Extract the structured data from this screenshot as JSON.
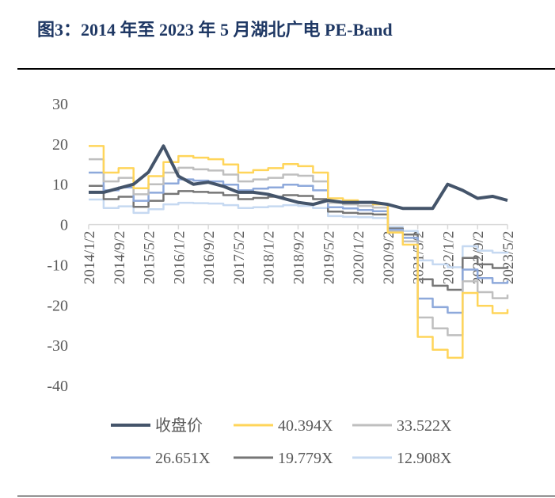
{
  "title": "图3：2014 年至 2023 年 5 月湖北广电 PE-Band",
  "chart_data": {
    "type": "line",
    "title": "图3：2014 年至 2023 年 5 月湖北广电 PE-Band",
    "ylim": [
      -40,
      30
    ],
    "yticks": [
      30,
      20,
      10,
      0,
      -10,
      -20,
      -30,
      -40
    ],
    "xticks": [
      "2014/1/2",
      "2014/9/2",
      "2015/5/2",
      "2016/1/2",
      "2016/9/2",
      "2017/5/2",
      "2018/1/2",
      "2018/9/2",
      "2019/5/2",
      "2020/1/2",
      "2020/9/2",
      "2021/5/2",
      "2022/1/2",
      "2022/9/2",
      "2023/5/2"
    ],
    "grid": false,
    "legend_placement": "bottom",
    "x": [
      "2014/1",
      "2014/5",
      "2014/9",
      "2015/1",
      "2015/5",
      "2015/9",
      "2016/1",
      "2016/5",
      "2016/9",
      "2017/1",
      "2017/5",
      "2017/9",
      "2018/1",
      "2018/5",
      "2018/9",
      "2019/1",
      "2019/5",
      "2019/9",
      "2020/1",
      "2020/5",
      "2020/9",
      "2021/1",
      "2021/5",
      "2021/9",
      "2022/1",
      "2022/5",
      "2022/9",
      "2023/1",
      "2023/5"
    ],
    "series": [
      {
        "name": "收盘价",
        "color": "#44546A",
        "step": false,
        "values": [
          8,
          8,
          9,
          10,
          13,
          19.5,
          12,
          10,
          10.5,
          9.5,
          8,
          8,
          7.5,
          6.5,
          5.5,
          5,
          6,
          5.5,
          5.5,
          5.5,
          5,
          4,
          4,
          4,
          10,
          8.5,
          6.5,
          7,
          6
        ]
      },
      {
        "name": "40.394X",
        "color": "#FFD55A",
        "step": true,
        "values": [
          19.5,
          12.9,
          14.0,
          9.0,
          12.0,
          15.5,
          17.0,
          16.6,
          16.2,
          14.9,
          12.9,
          13.5,
          14.0,
          15.0,
          14.5,
          12.9,
          6.5,
          6.0,
          5.5,
          5.0,
          -2.0,
          -5.0,
          -27.9,
          -31.1,
          -33.1,
          -17.0,
          -20.2,
          -22.0,
          -21.0
        ]
      },
      {
        "name": "33.522X",
        "color": "#BFBFBF",
        "step": true,
        "values": [
          16.2,
          10.7,
          11.6,
          7.5,
          10.0,
          12.9,
          14.1,
          13.7,
          13.4,
          12.4,
          10.7,
          11.2,
          11.6,
          12.4,
          12.1,
          10.7,
          5.4,
          5.0,
          4.6,
          4.2,
          -1.7,
          -4.2,
          -23.1,
          -25.8,
          -27.5,
          -14.1,
          -16.8,
          -18.3,
          -17.4
        ]
      },
      {
        "name": "26.651X",
        "color": "#8EA9DB",
        "step": true,
        "values": [
          12.9,
          8.5,
          9.2,
          5.9,
          7.9,
          10.2,
          11.2,
          10.9,
          10.7,
          9.9,
          8.5,
          8.9,
          9.2,
          9.9,
          9.6,
          8.5,
          4.3,
          4.0,
          3.6,
          3.3,
          -1.3,
          -3.3,
          -18.4,
          -20.5,
          -21.9,
          -11.2,
          -13.3,
          -14.5,
          -13.9
        ]
      },
      {
        "name": "19.779X",
        "color": "#767676",
        "step": true,
        "values": [
          9.6,
          6.3,
          6.9,
          4.4,
          5.9,
          7.6,
          8.3,
          8.1,
          7.9,
          7.3,
          6.3,
          6.6,
          6.9,
          7.3,
          7.1,
          6.3,
          3.2,
          2.9,
          2.7,
          2.5,
          -1.0,
          -2.5,
          -13.6,
          -15.2,
          -16.2,
          -8.3,
          -9.9,
          -10.8,
          -10.3
        ]
      },
      {
        "name": "12.908X",
        "color": "#C6D9F1",
        "step": true,
        "values": [
          6.2,
          4.1,
          4.5,
          2.9,
          3.8,
          5.0,
          5.4,
          5.3,
          5.2,
          4.8,
          4.1,
          4.3,
          4.5,
          4.8,
          4.6,
          4.1,
          2.1,
          1.9,
          1.8,
          1.6,
          -0.6,
          -1.6,
          -8.9,
          -9.9,
          -10.6,
          -5.4,
          -6.5,
          -7.0,
          -6.7
        ]
      }
    ]
  }
}
